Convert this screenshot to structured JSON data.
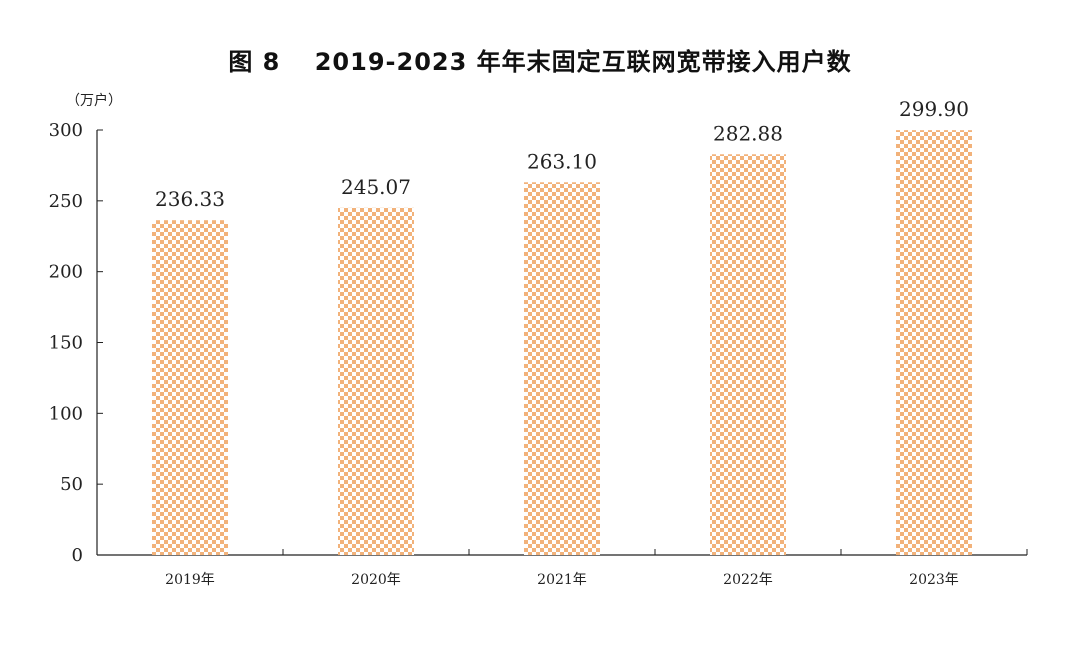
{
  "chart_data": {
    "type": "bar",
    "title": "图 8　 2019-2023 年年末固定互联网宽带接入用户数",
    "ylabel": "（万户）",
    "xlabel": "",
    "categories": [
      "2019年",
      "2020年",
      "2021年",
      "2022年",
      "2023年"
    ],
    "values": [
      236.33,
      245.07,
      263.1,
      282.88,
      299.9
    ],
    "value_labels": [
      "236.33",
      "245.07",
      "263.10",
      "282.88",
      "299.90"
    ],
    "ylim": [
      0,
      300
    ],
    "yticks": [
      0,
      50,
      100,
      150,
      200,
      250,
      300
    ],
    "grid": false,
    "legend": "none",
    "bar_color": "#f2b27a",
    "bar_pattern": "checkerboard"
  }
}
